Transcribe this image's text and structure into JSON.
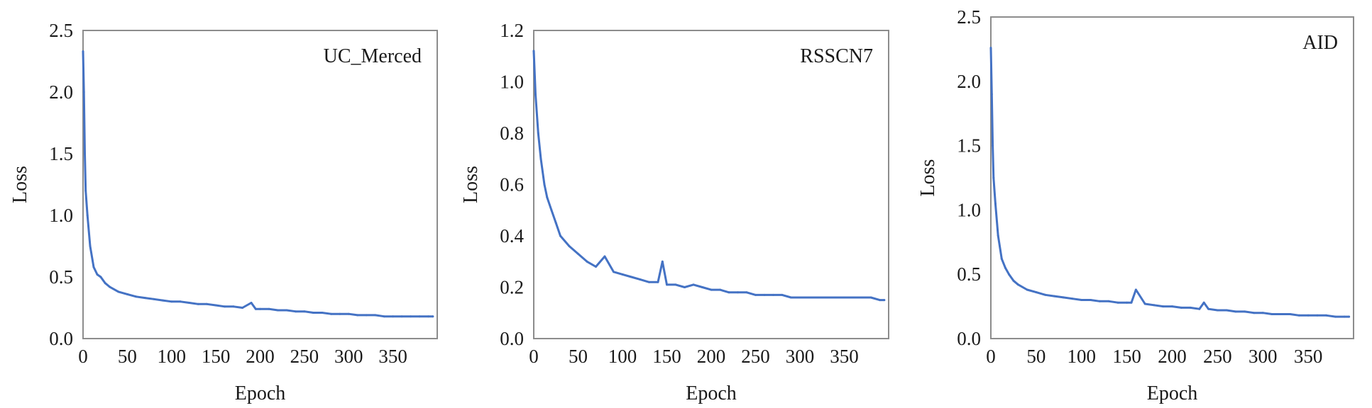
{
  "chart_data": [
    {
      "type": "line",
      "title": "UC_Merced",
      "xlabel": "Epoch",
      "ylabel": "Loss",
      "xlim": [
        0,
        400
      ],
      "ylim": [
        0,
        2.5
      ],
      "xticks": [
        0,
        50,
        100,
        150,
        200,
        250,
        300,
        350
      ],
      "xtick_labels": [
        "0",
        "50",
        "100",
        "150",
        "200",
        "250",
        "300",
        "350"
      ],
      "yticks": [
        0,
        0.5,
        1,
        1.5,
        2,
        2.5
      ],
      "ytick_labels": [
        "0.0",
        "0.5",
        "1.0",
        "1.5",
        "2.0",
        "2.5"
      ],
      "grid": false,
      "color": "#4472c4",
      "series": [
        {
          "x": [
            0,
            1,
            2,
            3,
            5,
            8,
            12,
            16,
            20,
            25,
            30,
            40,
            50,
            60,
            70,
            80,
            90,
            100,
            110,
            120,
            130,
            140,
            150,
            160,
            170,
            180,
            190,
            195,
            200,
            210,
            220,
            230,
            240,
            250,
            260,
            270,
            280,
            290,
            300,
            310,
            320,
            330,
            340,
            350,
            360,
            370,
            380,
            390,
            395
          ],
          "y": [
            2.33,
            2.0,
            1.5,
            1.2,
            1.0,
            0.75,
            0.58,
            0.52,
            0.5,
            0.45,
            0.42,
            0.38,
            0.36,
            0.34,
            0.33,
            0.32,
            0.31,
            0.3,
            0.3,
            0.29,
            0.28,
            0.28,
            0.27,
            0.26,
            0.26,
            0.25,
            0.29,
            0.24,
            0.24,
            0.24,
            0.23,
            0.23,
            0.22,
            0.22,
            0.21,
            0.21,
            0.2,
            0.2,
            0.2,
            0.19,
            0.19,
            0.19,
            0.18,
            0.18,
            0.18,
            0.18,
            0.18,
            0.18,
            0.18
          ]
        }
      ]
    },
    {
      "type": "line",
      "title": "RSSCN7",
      "xlabel": "Epoch",
      "ylabel": "Loss",
      "xlim": [
        0,
        400
      ],
      "ylim": [
        0,
        1.2
      ],
      "xticks": [
        0,
        50,
        100,
        150,
        200,
        250,
        300,
        350
      ],
      "xtick_labels": [
        "0",
        "50",
        "100",
        "150",
        "200",
        "250",
        "300",
        "350"
      ],
      "yticks": [
        0,
        0.2,
        0.4,
        0.6,
        0.8,
        1.0,
        1.2
      ],
      "ytick_labels": [
        "0.0",
        "0.2",
        "0.4",
        "0.6",
        "0.8",
        "1.0",
        "1.2"
      ],
      "grid": false,
      "color": "#4472c4",
      "series": [
        {
          "x": [
            0,
            2,
            5,
            8,
            12,
            15,
            20,
            25,
            30,
            40,
            50,
            60,
            70,
            80,
            90,
            100,
            110,
            120,
            130,
            140,
            145,
            150,
            160,
            170,
            180,
            190,
            200,
            210,
            220,
            230,
            240,
            250,
            260,
            270,
            280,
            290,
            300,
            310,
            320,
            330,
            340,
            350,
            360,
            370,
            380,
            390,
            395
          ],
          "y": [
            1.12,
            0.95,
            0.8,
            0.7,
            0.6,
            0.55,
            0.5,
            0.45,
            0.4,
            0.36,
            0.33,
            0.3,
            0.28,
            0.32,
            0.26,
            0.25,
            0.24,
            0.23,
            0.22,
            0.22,
            0.3,
            0.21,
            0.21,
            0.2,
            0.21,
            0.2,
            0.19,
            0.19,
            0.18,
            0.18,
            0.18,
            0.17,
            0.17,
            0.17,
            0.17,
            0.16,
            0.16,
            0.16,
            0.16,
            0.16,
            0.16,
            0.16,
            0.16,
            0.16,
            0.16,
            0.15,
            0.15
          ]
        }
      ]
    },
    {
      "type": "line",
      "title": "AID",
      "xlabel": "Epoch",
      "ylabel": "Loss",
      "xlim": [
        0,
        400
      ],
      "ylim": [
        0,
        2.5
      ],
      "xticks": [
        0,
        50,
        100,
        150,
        200,
        250,
        300,
        350
      ],
      "xtick_labels": [
        "0",
        "50",
        "100",
        "150",
        "200",
        "250",
        "300",
        "350"
      ],
      "yticks": [
        0,
        0.5,
        1,
        1.5,
        2,
        2.5
      ],
      "ytick_labels": [
        "0.0",
        "0.5",
        "1.0",
        "1.5",
        "2.0",
        "2.5"
      ],
      "grid": false,
      "color": "#4472c4",
      "series": [
        {
          "x": [
            0,
            1,
            2,
            3,
            5,
            8,
            12,
            16,
            20,
            25,
            30,
            40,
            50,
            60,
            70,
            80,
            90,
            100,
            110,
            120,
            130,
            140,
            150,
            155,
            160,
            170,
            180,
            190,
            200,
            210,
            220,
            230,
            235,
            240,
            250,
            260,
            270,
            280,
            290,
            300,
            310,
            320,
            330,
            340,
            350,
            360,
            370,
            380,
            390,
            395
          ],
          "y": [
            2.26,
            1.9,
            1.5,
            1.25,
            1.05,
            0.8,
            0.62,
            0.55,
            0.5,
            0.45,
            0.42,
            0.38,
            0.36,
            0.34,
            0.33,
            0.32,
            0.31,
            0.3,
            0.3,
            0.29,
            0.29,
            0.28,
            0.28,
            0.28,
            0.38,
            0.27,
            0.26,
            0.25,
            0.25,
            0.24,
            0.24,
            0.23,
            0.28,
            0.23,
            0.22,
            0.22,
            0.21,
            0.21,
            0.2,
            0.2,
            0.19,
            0.19,
            0.19,
            0.18,
            0.18,
            0.18,
            0.18,
            0.17,
            0.17,
            0.17
          ]
        }
      ]
    }
  ]
}
